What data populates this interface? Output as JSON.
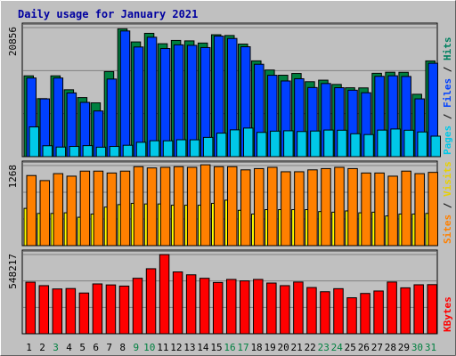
{
  "chart_data": {
    "type": "bar",
    "title": "Daily usage for January 2021",
    "categories": [
      "1",
      "2",
      "3",
      "4",
      "5",
      "6",
      "7",
      "8",
      "9",
      "10",
      "11",
      "12",
      "13",
      "14",
      "15",
      "16",
      "17",
      "18",
      "19",
      "20",
      "21",
      "22",
      "23",
      "24",
      "25",
      "26",
      "27",
      "28",
      "29",
      "30",
      "31"
    ],
    "weekend_days": [
      3,
      9,
      10,
      16,
      17,
      23,
      24,
      30,
      31
    ],
    "panels": [
      {
        "id": "hits",
        "max_label": "20856",
        "ymax": 20856,
        "side_labels": [
          {
            "text": "Pages",
            "color": "#00c8e8"
          },
          {
            "text": " / ",
            "color": "#000000"
          },
          {
            "text": "Files",
            "color": "#0040ff"
          },
          {
            "text": " / ",
            "color": "#000000"
          },
          {
            "text": "Hits",
            "color": "#008060"
          }
        ],
        "series": [
          {
            "name": "Hits",
            "color": "#008040",
            "values": [
              13060,
              9380,
              13060,
              10810,
              9550,
              8690,
              13750,
              20660,
              18540,
              19930,
              18250,
              18780,
              18710,
              18360,
              19700,
              19580,
              18190,
              15480,
              14000,
              13160,
              13440,
              12110,
              12360,
              11670,
              11130,
              11110,
              13470,
              13640,
              13630,
              10080,
              15470
            ]
          },
          {
            "name": "Files",
            "color": "#0040ff",
            "values": [
              12710,
              9340,
              12710,
              10300,
              8770,
              7380,
              12540,
              20310,
              17720,
              19300,
              17470,
              18070,
              17990,
              17630,
              19480,
              19100,
              17760,
              14930,
              13150,
              12230,
              12590,
              11170,
              11820,
              11140,
              10740,
              10330,
              12980,
              13070,
              12960,
              9340,
              15090
            ]
          },
          {
            "name": "Pages",
            "color": "#00c8e8",
            "values": [
              4800,
              1760,
              1550,
              1650,
              1780,
              1530,
              1650,
              1840,
              2320,
              2570,
              2560,
              2730,
              2720,
              3110,
              3800,
              4330,
              4620,
              3920,
              4120,
              4180,
              4060,
              4140,
              4300,
              4270,
              3700,
              3570,
              4290,
              4470,
              4270,
              3990,
              3310
            ]
          }
        ]
      },
      {
        "id": "visits",
        "max_label": "1268",
        "ymax": 1268,
        "side_labels": [
          {
            "text": "Sites",
            "color": "#ff8000"
          },
          {
            "text": " / ",
            "color": "#000000"
          },
          {
            "text": "Visits",
            "color": "#e8d000"
          }
        ],
        "series": [
          {
            "name": "Visits",
            "color": "#ffff00",
            "values": [
              590,
              510,
              510,
              520,
              450,
              500,
              610,
              650,
              670,
              660,
              660,
              640,
              640,
              640,
              670,
              720,
              560,
              500,
              570,
              570,
              570,
              570,
              540,
              530,
              550,
              520,
              530,
              470,
              500,
              500,
              510
            ]
          },
          {
            "name": "Sites",
            "color": "#ff8000",
            "values": [
              1110,
              1030,
              1140,
              1100,
              1180,
              1180,
              1150,
              1180,
              1250,
              1230,
              1240,
              1250,
              1240,
              1280,
              1250,
              1250,
              1200,
              1220,
              1240,
              1170,
              1170,
              1200,
              1220,
              1240,
              1220,
              1150,
              1150,
              1100,
              1180,
              1140,
              1160
            ]
          }
        ]
      },
      {
        "id": "kbytes",
        "max_label": "548217",
        "ymax": 548217,
        "side_labels": [
          {
            "text": "KBytes",
            "color": "#ff0000"
          }
        ],
        "series": [
          {
            "name": "KBytes",
            "color": "#ff0000",
            "values": [
              357000,
              333000,
              310000,
              313000,
              282000,
              345000,
              338000,
              330000,
              384000,
              450000,
              548000,
              428000,
              408000,
              384000,
              355000,
              376000,
              366000,
              376000,
              351000,
              333000,
              358000,
              320000,
              291000,
              312000,
              249000,
              279000,
              296000,
              358000,
              318000,
              339000,
              340000
            ]
          }
        ]
      }
    ]
  }
}
